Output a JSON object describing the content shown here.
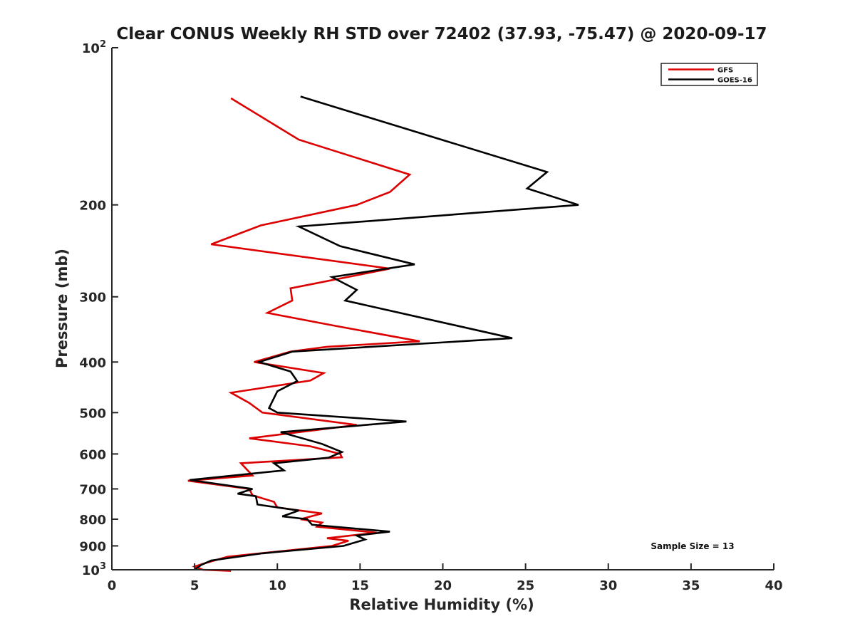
{
  "chart_data": {
    "type": "line",
    "title": "Clear CONUS Weekly RH STD over 72402 (37.93, -75.47) @ 2020-09-17",
    "xlabel": "Relative Humidity (%)",
    "ylabel": "Pressure (mb)",
    "xlim": [
      0,
      40
    ],
    "ylim": [
      100,
      1000
    ],
    "yscale": "log",
    "y_reversed": true,
    "x_ticks": [
      0,
      5,
      10,
      15,
      20,
      25,
      30,
      35,
      40
    ],
    "x_tick_labels": [
      "0",
      "5",
      "10",
      "15",
      "20",
      "25",
      "30",
      "35",
      "40"
    ],
    "y_ticks": [
      100,
      200,
      300,
      400,
      500,
      600,
      700,
      800,
      900,
      1000
    ],
    "y_tick_labels": [
      {
        "base": "10",
        "exp": "2"
      },
      {
        "text": "200"
      },
      {
        "text": "300"
      },
      {
        "text": "400"
      },
      {
        "text": "500"
      },
      {
        "text": "600"
      },
      {
        "text": "700"
      },
      {
        "text": "800"
      },
      {
        "text": "900"
      },
      {
        "base": "10",
        "exp": "3"
      }
    ],
    "grid": false,
    "legend_position": "top-right",
    "annotation": "Sample Size = 13",
    "series": [
      {
        "name": "GFS",
        "color": "#dd0000",
        "points": [
          [
            7.2,
            125
          ],
          [
            11.3,
            150
          ],
          [
            18.0,
            175
          ],
          [
            16.8,
            189
          ],
          [
            14.8,
            200
          ],
          [
            9.0,
            219
          ],
          [
            6.0,
            238
          ],
          [
            16.8,
            265
          ],
          [
            10.8,
            289
          ],
          [
            10.9,
            305
          ],
          [
            9.4,
            322
          ],
          [
            13.5,
            341
          ],
          [
            18.6,
            365
          ],
          [
            13.0,
            374
          ],
          [
            10.8,
            382
          ],
          [
            8.6,
            400
          ],
          [
            12.8,
            420
          ],
          [
            12.0,
            434
          ],
          [
            7.2,
            458
          ],
          [
            8.3,
            479
          ],
          [
            9.1,
            500
          ],
          [
            14.8,
            528
          ],
          [
            8.3,
            560
          ],
          [
            12.0,
            580
          ],
          [
            13.8,
            600
          ],
          [
            13.9,
            609
          ],
          [
            7.8,
            625
          ],
          [
            8.5,
            660
          ],
          [
            4.6,
            675
          ],
          [
            8.3,
            700
          ],
          [
            8.5,
            720
          ],
          [
            9.8,
            741
          ],
          [
            10.0,
            760
          ],
          [
            12.7,
            780
          ],
          [
            11.4,
            800
          ],
          [
            12.7,
            812
          ],
          [
            12.4,
            827
          ],
          [
            16.0,
            849
          ],
          [
            13.0,
            870
          ],
          [
            14.3,
            880
          ],
          [
            13.3,
            900
          ],
          [
            7.0,
            944
          ],
          [
            5.7,
            970
          ],
          [
            5.0,
            986
          ],
          [
            5.5,
            1000
          ],
          [
            7.2,
            1005
          ]
        ]
      },
      {
        "name": "GOES-16",
        "color": "#000000",
        "points": [
          [
            11.4,
            124
          ],
          [
            26.3,
            173
          ],
          [
            25.1,
            186
          ],
          [
            28.2,
            200
          ],
          [
            11.3,
            220
          ],
          [
            13.8,
            240
          ],
          [
            18.3,
            260
          ],
          [
            13.3,
            275
          ],
          [
            14.8,
            291
          ],
          [
            14.1,
            305
          ],
          [
            24.2,
            360
          ],
          [
            10.9,
            382
          ],
          [
            8.9,
            400
          ],
          [
            10.8,
            417
          ],
          [
            11.2,
            435
          ],
          [
            10.0,
            455
          ],
          [
            9.5,
            490
          ],
          [
            10.0,
            500
          ],
          [
            17.8,
            520
          ],
          [
            10.2,
            545
          ],
          [
            12.7,
            574
          ],
          [
            13.9,
            595
          ],
          [
            13.1,
            610
          ],
          [
            9.8,
            625
          ],
          [
            10.4,
            645
          ],
          [
            4.7,
            673
          ],
          [
            8.5,
            700
          ],
          [
            7.6,
            715
          ],
          [
            8.7,
            723
          ],
          [
            8.8,
            750
          ],
          [
            11.3,
            770
          ],
          [
            10.3,
            790
          ],
          [
            11.8,
            800
          ],
          [
            12.1,
            820
          ],
          [
            16.8,
            845
          ],
          [
            14.8,
            860
          ],
          [
            15.3,
            875
          ],
          [
            14.0,
            900
          ],
          [
            9.1,
            930
          ],
          [
            6.0,
            960
          ],
          [
            5.4,
            979
          ],
          [
            5.0,
            1000
          ]
        ]
      }
    ]
  }
}
